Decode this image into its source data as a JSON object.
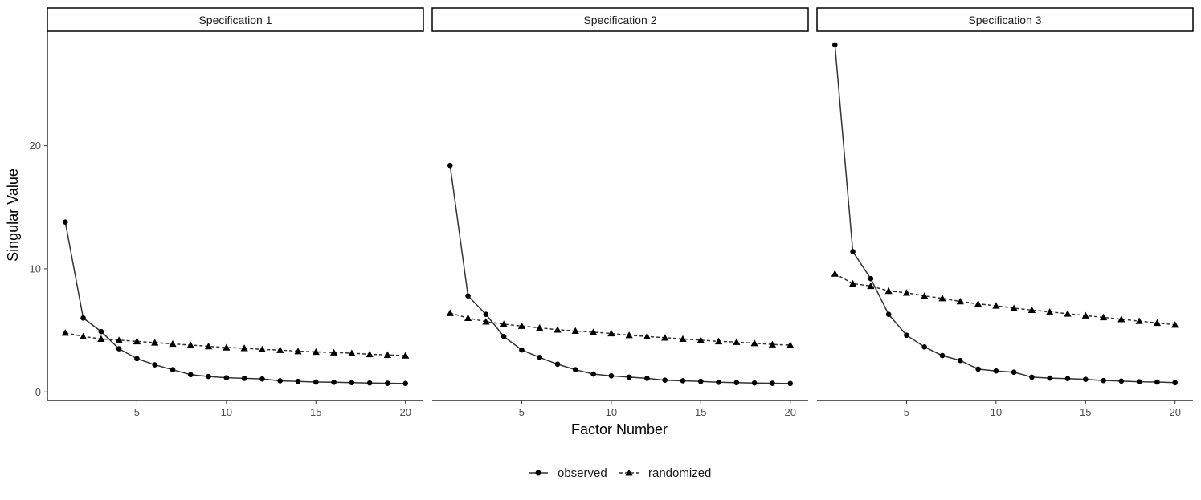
{
  "chart_data": {
    "type": "line",
    "xlabel": "Factor Number",
    "ylabel": "Singular Value",
    "x": [
      1,
      2,
      3,
      4,
      5,
      6,
      7,
      8,
      9,
      10,
      11,
      12,
      13,
      14,
      15,
      16,
      17,
      18,
      19,
      20
    ],
    "x_ticks": [
      5,
      10,
      15,
      20
    ],
    "y_ticks": [
      0,
      10,
      20
    ],
    "xlim": [
      0,
      21
    ],
    "ylim": [
      -0.7,
      29.3
    ],
    "grid": false,
    "legend_position": "bottom",
    "legend": [
      {
        "name": "observed",
        "marker": "circle",
        "linestyle": "solid"
      },
      {
        "name": "randomized",
        "marker": "triangle",
        "linestyle": "dashed"
      }
    ],
    "panels": [
      {
        "title": "Specification 1",
        "series": [
          {
            "name": "observed",
            "values": [
              13.8,
              6.0,
              4.9,
              3.5,
              2.7,
              2.2,
              1.8,
              1.4,
              1.25,
              1.15,
              1.1,
              1.05,
              0.9,
              0.85,
              0.8,
              0.78,
              0.75,
              0.72,
              0.7,
              0.68
            ]
          },
          {
            "name": "randomized",
            "values": [
              4.8,
              4.5,
              4.3,
              4.2,
              4.1,
              4.0,
              3.9,
              3.8,
              3.7,
              3.6,
              3.55,
              3.45,
              3.4,
              3.3,
              3.25,
              3.2,
              3.15,
              3.05,
              3.0,
              2.95
            ]
          }
        ]
      },
      {
        "title": "Specification 2",
        "series": [
          {
            "name": "observed",
            "values": [
              18.4,
              7.8,
              6.3,
              4.5,
              3.4,
              2.8,
              2.25,
              1.8,
              1.45,
              1.3,
              1.2,
              1.1,
              0.95,
              0.9,
              0.85,
              0.78,
              0.75,
              0.72,
              0.7,
              0.68
            ]
          },
          {
            "name": "randomized",
            "values": [
              6.4,
              6.0,
              5.7,
              5.5,
              5.35,
              5.2,
              5.05,
              4.95,
              4.85,
              4.75,
              4.6,
              4.5,
              4.4,
              4.3,
              4.2,
              4.1,
              4.05,
              3.95,
              3.85,
              3.8
            ]
          }
        ]
      },
      {
        "title": "Specification 3",
        "series": [
          {
            "name": "observed",
            "values": [
              28.2,
              11.4,
              9.2,
              6.3,
              4.6,
              3.65,
              2.95,
              2.55,
              1.85,
              1.7,
              1.6,
              1.2,
              1.12,
              1.08,
              1.02,
              0.92,
              0.88,
              0.82,
              0.8,
              0.75
            ]
          },
          {
            "name": "randomized",
            "values": [
              9.6,
              8.8,
              8.6,
              8.2,
              8.05,
              7.8,
              7.6,
              7.35,
              7.15,
              7.0,
              6.8,
              6.65,
              6.5,
              6.35,
              6.2,
              6.05,
              5.9,
              5.75,
              5.6,
              5.45
            ]
          }
        ]
      }
    ]
  }
}
